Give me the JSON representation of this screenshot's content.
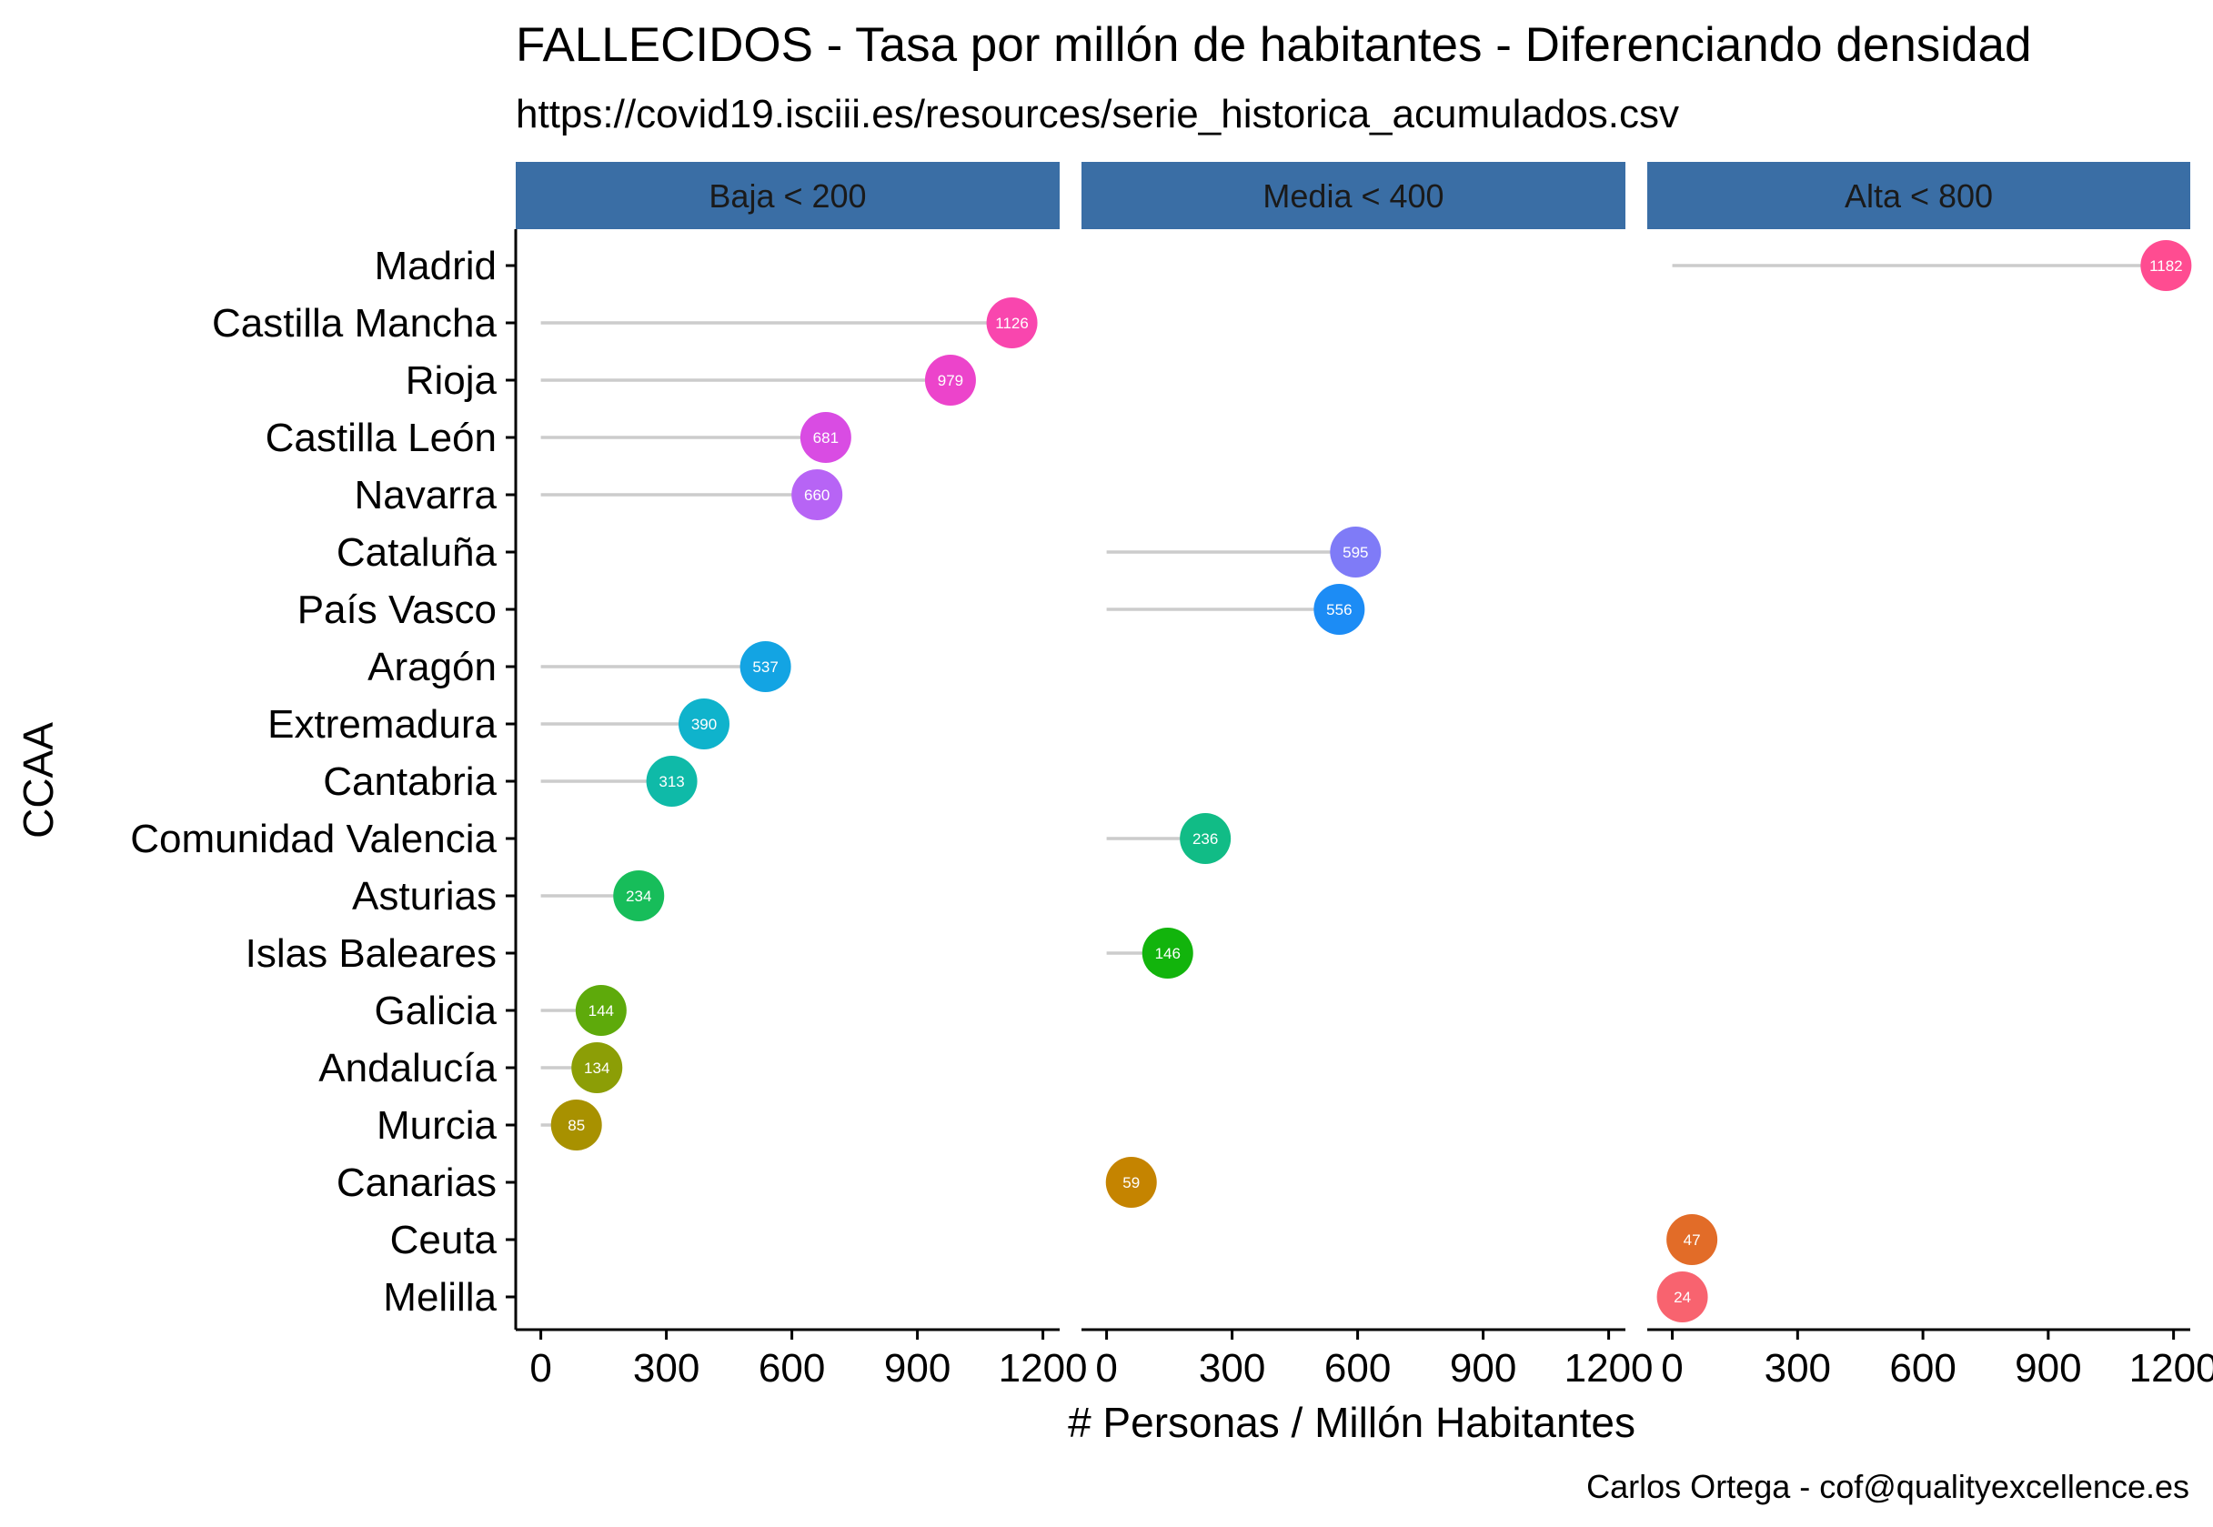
{
  "chart_data": {
    "type": "lollipop",
    "title": "FALLECIDOS - Tasa por millón de habitantes - Diferenciando densidad",
    "subtitle": "https://covid19.isciii.es/resources/serie_historica_acumulados.csv",
    "xlabel": "# Personas / Millón Habitantes",
    "ylabel": "CCAA",
    "caption": "Carlos Ortega - cof@qualityexcellence.es",
    "xlim": [
      -60,
      1240
    ],
    "xticks": [
      0,
      300,
      600,
      900,
      1200
    ],
    "xtick_labels": [
      "0",
      "300",
      "600",
      "900",
      "1200"
    ],
    "grid": false,
    "legend": "none",
    "facets": [
      "Baja < 200",
      "Media < 400",
      "Alta < 800"
    ],
    "categories": [
      "Madrid",
      "Castilla Mancha",
      "Rioja",
      "Castilla León",
      "Navarra",
      "Cataluña",
      "País Vasco",
      "Aragón",
      "Extremadura",
      "Cantabria",
      "Comunidad Valencia",
      "Asturias",
      "Islas Baleares",
      "Galicia",
      "Andalucía",
      "Murcia",
      "Canarias",
      "Ceuta",
      "Melilla"
    ],
    "points": [
      {
        "ccaa": "Madrid",
        "facet": 2,
        "value": 1182,
        "label": "1182",
        "color": "#FF4C91"
      },
      {
        "ccaa": "Castilla Mancha",
        "facet": 0,
        "value": 1126,
        "label": "1126",
        "color": "#F946AE"
      },
      {
        "ccaa": "Rioja",
        "facet": 0,
        "value": 979,
        "label": "979",
        "color": "#EC44CB"
      },
      {
        "ccaa": "Castilla León",
        "facet": 0,
        "value": 681,
        "label": "681",
        "color": "#D94CE3"
      },
      {
        "ccaa": "Navarra",
        "facet": 0,
        "value": 660,
        "label": "660",
        "color": "#B764F5"
      },
      {
        "ccaa": "Cataluña",
        "facet": 1,
        "value": 595,
        "label": "595",
        "color": "#7F7BF7"
      },
      {
        "ccaa": "País Vasco",
        "facet": 1,
        "value": 556,
        "label": "556",
        "color": "#1C8CF5"
      },
      {
        "ccaa": "Aragón",
        "facet": 0,
        "value": 537,
        "label": "537",
        "color": "#13A4E3"
      },
      {
        "ccaa": "Extremadura",
        "facet": 0,
        "value": 390,
        "label": "390",
        "color": "#0FB3CC"
      },
      {
        "ccaa": "Cantabria",
        "facet": 0,
        "value": 313,
        "label": "313",
        "color": "#0FBAA8"
      },
      {
        "ccaa": "Comunidad Valencia",
        "facet": 1,
        "value": 236,
        "label": "236",
        "color": "#11BC86"
      },
      {
        "ccaa": "Asturias",
        "facet": 0,
        "value": 234,
        "label": "234",
        "color": "#17BD5A"
      },
      {
        "ccaa": "Islas Baleares",
        "facet": 1,
        "value": 146,
        "label": "146",
        "color": "#12B40C"
      },
      {
        "ccaa": "Galicia",
        "facet": 0,
        "value": 144,
        "label": "144",
        "color": "#5EAA0B"
      },
      {
        "ccaa": "Andalucía",
        "facet": 0,
        "value": 134,
        "label": "134",
        "color": "#8C9E06"
      },
      {
        "ccaa": "Murcia",
        "facet": 0,
        "value": 85,
        "label": "85",
        "color": "#A89100"
      },
      {
        "ccaa": "Canarias",
        "facet": 1,
        "value": 59,
        "label": "59",
        "color": "#C58400"
      },
      {
        "ccaa": "Ceuta",
        "facet": 2,
        "value": 47,
        "label": "47",
        "color": "#E26C28"
      },
      {
        "ccaa": "Melilla",
        "facet": 2,
        "value": 24,
        "label": "24",
        "color": "#F8636F"
      }
    ],
    "colors": {
      "strip": "#3A6EA5",
      "segment": "#CCCCCC",
      "axis": "#000000"
    }
  }
}
